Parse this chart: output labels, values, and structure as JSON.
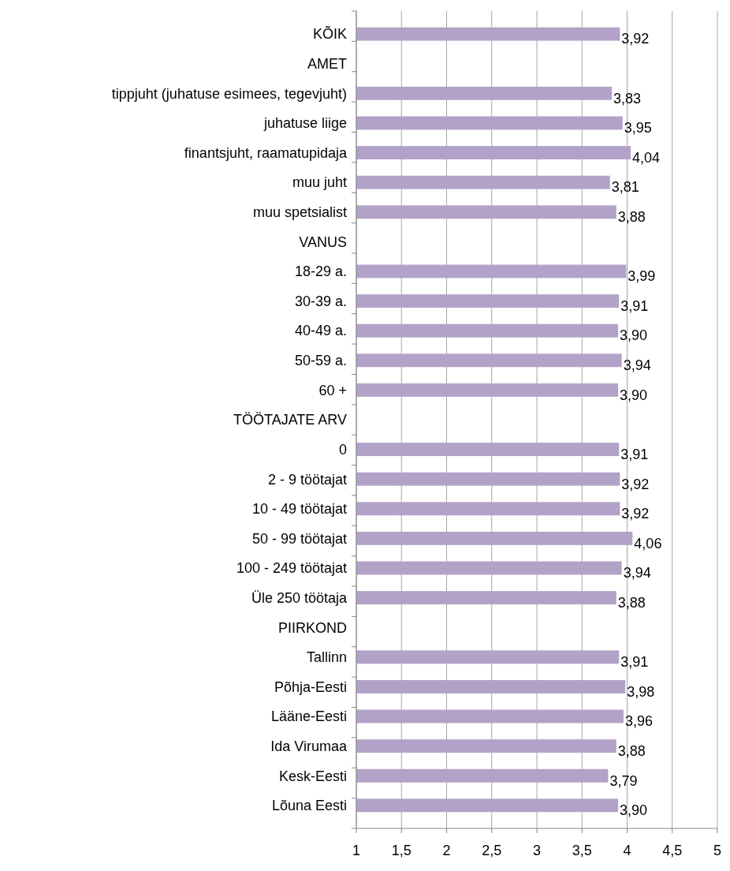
{
  "chart_data": {
    "type": "bar",
    "orientation": "horizontal",
    "categories": [
      "KÕIK",
      "AMET",
      "tippjuht (juhatuse esimees, tegevjuht)",
      "juhatuse liige",
      "finantsjuht, raamatupidaja",
      "muu juht",
      "muu spetsialist",
      "VANUS",
      "18-29 a.",
      "30-39 a.",
      "40-49 a.",
      "50-59 a.",
      "60 +",
      "TÖÖTAJATE ARV",
      "0",
      "2 - 9 töötajat",
      "10 - 49 töötajat",
      "50 - 99 töötajat",
      "100 - 249 töötajat",
      "Üle 250 töötaja",
      "PIIRKOND",
      "Tallinn",
      "Põhja-Eesti",
      "Lääne-Eesti",
      "Ida Virumaa",
      "Kesk-Eesti",
      "Lõuna Eesti"
    ],
    "values": [
      3.92,
      null,
      3.83,
      3.95,
      4.04,
      3.81,
      3.88,
      null,
      3.99,
      3.91,
      3.9,
      3.94,
      3.9,
      null,
      3.91,
      3.92,
      3.92,
      4.06,
      3.94,
      3.88,
      null,
      3.91,
      3.98,
      3.96,
      3.88,
      3.79,
      3.9
    ],
    "value_labels": [
      "3,92",
      null,
      "3,83",
      "3,95",
      "4,04",
      "3,81",
      "3,88",
      null,
      "3,99",
      "3,91",
      "3,90",
      "3,94",
      "3,90",
      null,
      "3,91",
      "3,92",
      "3,92",
      "4,06",
      "3,94",
      "3,88",
      null,
      "3,91",
      "3,98",
      "3,96",
      "3,88",
      "3,79",
      "3,90"
    ],
    "color": "#b3a2c7",
    "xlim": [
      1,
      5
    ],
    "xticks": [
      1,
      {
        "value": 1.5,
        "label": "1,5"
      },
      2,
      {
        "value": 2.5,
        "label": "2,5"
      },
      3,
      {
        "value": 3.5,
        "label": "3,5"
      },
      4,
      {
        "value": 4.5,
        "label": "4,5"
      },
      5
    ],
    "grid": "x"
  }
}
